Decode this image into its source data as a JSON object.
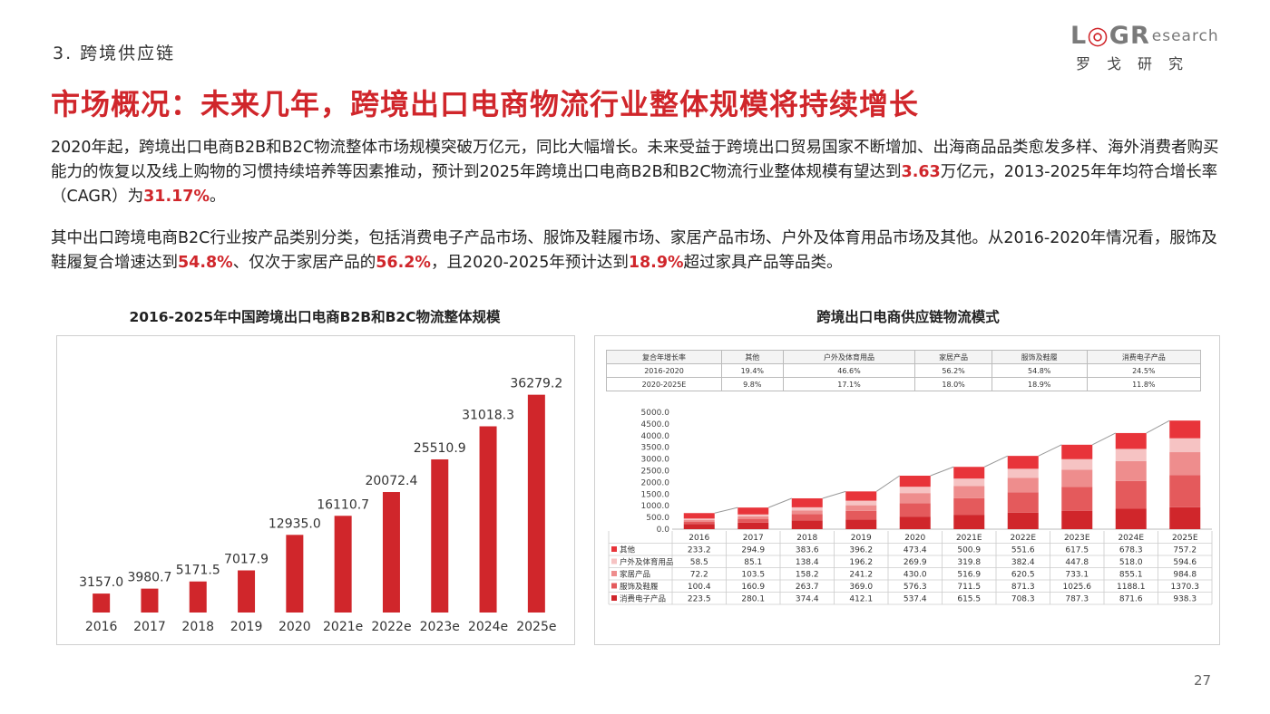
{
  "header": {
    "section": "3. 跨境供应链",
    "logo_left": "L",
    "logo_o": "◎",
    "logo_g": "G",
    "logo_r": "R",
    "logo_rest": "esearch",
    "logo_sub": "罗戈研究",
    "title": "市场概况：未来几年，跨境出口电商物流行业整体规模将持续增长"
  },
  "paragraphs": {
    "p1_a": "2020年起，跨境出口电商B2B和B2C物流整体市场规模突破万亿元，同比大幅增长。未来受益于跨境出口贸易国家不断增加、出海商品品类愈发多样、海外消费者购买能力的恢复以及线上购物的习惯持续培养等因素推动，预计到2025年跨境出口电商B2B和B2C物流行业整体规模有望达到",
    "p1_hl1": "3.63",
    "p1_b": "万亿元，2013-2025年年均符合增长率（CAGR）为",
    "p1_hl2": "31.17%",
    "p1_c": "。",
    "p2_a": "其中出口跨境电商B2C行业按产品类别分类，包括消费电子产品市场、服饰及鞋履市场、家居产品市场、户外及体育用品市场及其他。从2016-2020年情况看，服饰及鞋履复合增速达到",
    "p2_hl1": "54.8%",
    "p2_b": "、仅次于家居产品的",
    "p2_hl2": "56.2%",
    "p2_c": "，且2020-2025年预计达到",
    "p2_hl3": "18.9%",
    "p2_d": "超过家具产品等品类。"
  },
  "chart_data": [
    {
      "type": "bar",
      "title": "2016-2025年中国跨境出口电商B2B和B2C物流整体规模",
      "categories": [
        "2016",
        "2017",
        "2018",
        "2019",
        "2020",
        "2021e",
        "2022e",
        "2023e",
        "2024e",
        "2025e"
      ],
      "values": [
        3157.0,
        3980.7,
        5171.5,
        7017.9,
        12935.0,
        16110.7,
        20072.4,
        25510.9,
        31018.3,
        36279.2
      ],
      "value_labels": [
        "3157.0",
        "3980.7",
        "5171.5",
        "7017.9",
        "12935.0",
        "16110.7",
        "20072.4",
        "25510.9",
        "31018.3",
        "36279.2"
      ],
      "ylim": [
        0,
        40000
      ],
      "color": "#d0262b",
      "grid": false
    },
    {
      "type": "bar",
      "stacked": true,
      "title": "跨境出口电商供应链物流模式",
      "categories": [
        "2016",
        "2017",
        "2018",
        "2019",
        "2020",
        "2021E",
        "2022E",
        "2023E",
        "2024E",
        "2025E"
      ],
      "yticks": [
        "0.0",
        "500.0",
        "1000.0",
        "1500.0",
        "2000.0",
        "2500.0",
        "3000.0",
        "3500.0",
        "4000.0",
        "4500.0",
        "5000.0"
      ],
      "ylim": [
        0,
        5000
      ],
      "series": [
        {
          "name": "消费电子产品",
          "color": "#d0262b",
          "values": [
            223.5,
            280.1,
            374.4,
            412.1,
            537.4,
            615.5,
            708.3,
            787.3,
            871.6,
            938.3
          ],
          "labels": [
            "223.5",
            "280.1",
            "374.4",
            "412.1",
            "537.4",
            "615.5",
            "708.3",
            "787.3",
            "871.6",
            "938.3"
          ]
        },
        {
          "name": "服饰及鞋履",
          "color": "#e45a5c",
          "values": [
            100.4,
            160.9,
            263.7,
            369.0,
            576.3,
            711.5,
            871.3,
            1025.6,
            1188.1,
            1370.3
          ],
          "labels": [
            "100.4",
            "160.9",
            "263.7",
            "369.0",
            "576.3",
            "711.5",
            "871.3",
            "1025.6",
            "1188.1",
            "1370.3"
          ]
        },
        {
          "name": "家居产品",
          "color": "#ee8d8d",
          "values": [
            72.2,
            103.5,
            158.2,
            241.2,
            430.0,
            516.9,
            620.5,
            733.1,
            855.1,
            984.8
          ],
          "labels": [
            "72.2",
            "103.5",
            "158.2",
            "241.2",
            "430.0",
            "516.9",
            "620.5",
            "733.1",
            "855.1",
            "984.8"
          ]
        },
        {
          "name": "户外及体育用品",
          "color": "#f6c3c3",
          "values": [
            58.5,
            85.1,
            138.4,
            196.2,
            269.9,
            319.8,
            382.4,
            447.8,
            518.0,
            594.6
          ],
          "labels": [
            "58.5",
            "85.1",
            "138.4",
            "196.2",
            "269.9",
            "319.8",
            "382.4",
            "447.8",
            "518.0",
            "594.6"
          ]
        },
        {
          "name": "其他",
          "color": "#e8343a",
          "values": [
            233.2,
            294.9,
            383.6,
            396.2,
            473.4,
            500.9,
            551.6,
            617.5,
            678.3,
            757.2
          ],
          "labels": [
            "233.2",
            "294.9",
            "383.6",
            "396.2",
            "473.4",
            "500.9",
            "551.6",
            "617.5",
            "678.3",
            "757.2"
          ]
        }
      ],
      "growth_table": {
        "headers": [
          "复合年增长率",
          "其他",
          "户外及体育用品",
          "家居产品",
          "服饰及鞋履",
          "消费电子产品"
        ],
        "rows": [
          [
            "2016-2020",
            "19.4%",
            "46.6%",
            "56.2%",
            "54.8%",
            "24.5%"
          ],
          [
            "2020-2025E",
            "9.8%",
            "17.1%",
            "18.0%",
            "18.9%",
            "11.8%"
          ]
        ]
      }
    }
  ],
  "page_number": "27",
  "watermark": {
    "text": "esearch",
    "sub": "罗 戈 研 究"
  }
}
